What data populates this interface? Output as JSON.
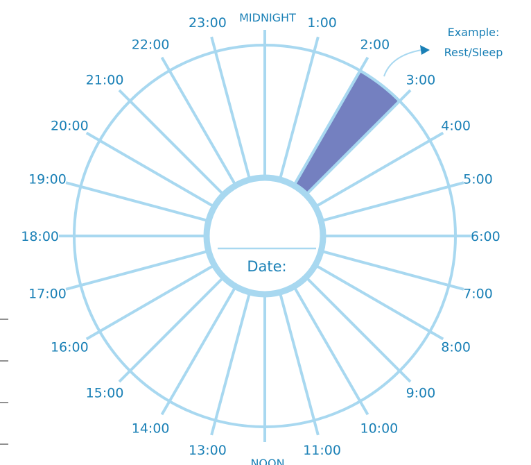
{
  "hours": [
    {
      "label": "MIDNIGHT",
      "hour": 0
    },
    {
      "label": "1:00",
      "hour": 1
    },
    {
      "label": "2:00",
      "hour": 2
    },
    {
      "label": "3:00",
      "hour": 3
    },
    {
      "label": "4:00",
      "hour": 4
    },
    {
      "label": "5:00",
      "hour": 5
    },
    {
      "label": "6:00",
      "hour": 6
    },
    {
      "label": "7:00",
      "hour": 7
    },
    {
      "label": "8:00",
      "hour": 8
    },
    {
      "label": "9:00",
      "hour": 9
    },
    {
      "label": "10:00",
      "hour": 10
    },
    {
      "label": "11:00",
      "hour": 11
    },
    {
      "label": "NOON",
      "hour": 12
    },
    {
      "label": "13:00",
      "hour": 13
    },
    {
      "label": "14:00",
      "hour": 14
    },
    {
      "label": "15:00",
      "hour": 15
    },
    {
      "label": "16:00",
      "hour": 16
    },
    {
      "label": "17:00",
      "hour": 17
    },
    {
      "label": "18:00",
      "hour": 18
    },
    {
      "label": "19:00",
      "hour": 19
    },
    {
      "label": "20:00",
      "hour": 20
    },
    {
      "label": "21:00",
      "hour": 21
    },
    {
      "label": "22:00",
      "hour": 22
    },
    {
      "label": "23:00",
      "hour": 23
    }
  ],
  "example": {
    "line1": "Example:",
    "line2": "Rest/Sleep",
    "start_hour": 2,
    "end_hour": 3
  },
  "center": {
    "label": "Date:"
  },
  "colors": {
    "spoke": "#a8d8f0",
    "text": "#1a80b6",
    "highlight": "#7480c0"
  }
}
